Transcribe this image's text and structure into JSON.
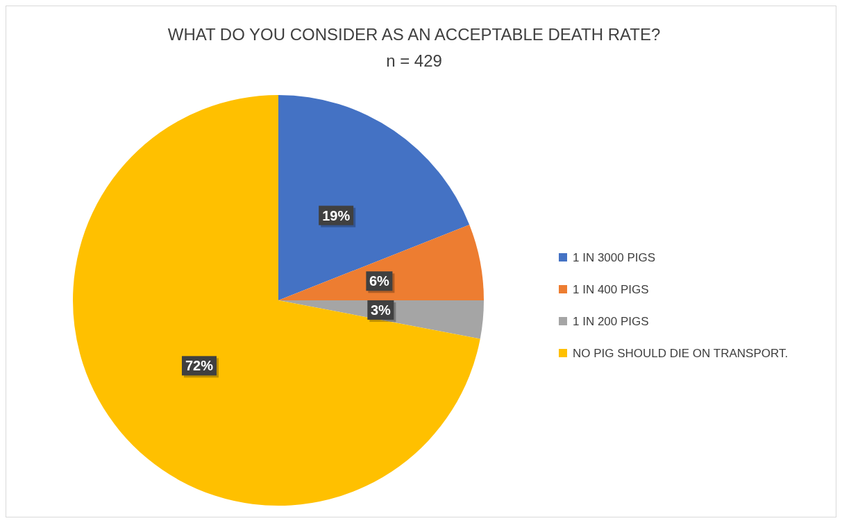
{
  "chart_data": {
    "type": "pie",
    "title": "WHAT DO YOU CONSIDER AS AN ACCEPTABLE DEATH RATE?",
    "subtitle": "n = 429",
    "categories": [
      "1 IN 3000 PIGS",
      "1 IN 400 PIGS",
      "1 IN 200 PIGS",
      "NO PIG SHOULD DIE ON TRANSPORT."
    ],
    "values": [
      19,
      6,
      3,
      72
    ],
    "colors": [
      "#4472c4",
      "#ed7d31",
      "#a5a5a5",
      "#ffc000"
    ],
    "value_labels": [
      "19%",
      "6%",
      "3%",
      "72%"
    ],
    "legend": "right"
  }
}
